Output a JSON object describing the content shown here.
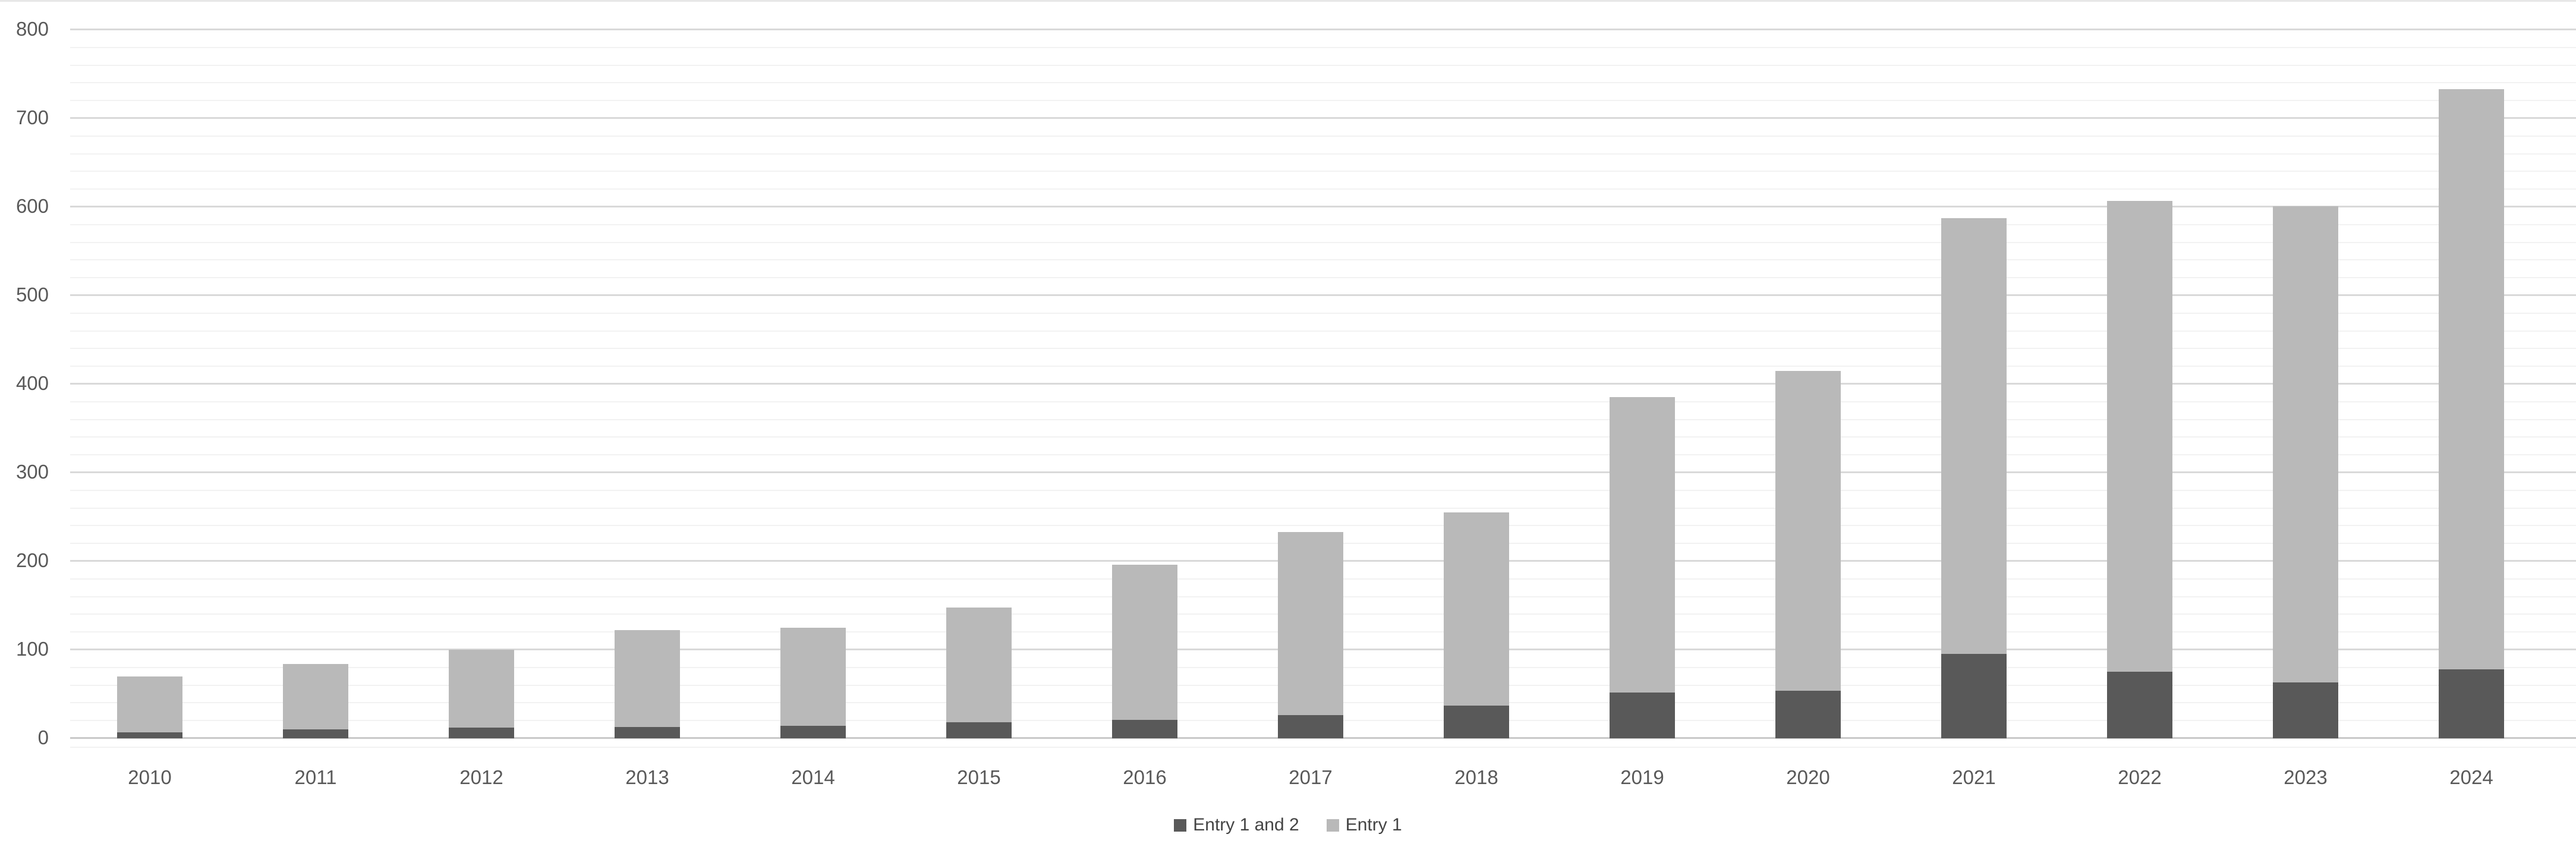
{
  "chart_data": {
    "type": "bar",
    "stacked": true,
    "title": "",
    "categories": [
      "2010",
      "2011",
      "2012",
      "2013",
      "2014",
      "2015",
      "2016",
      "2017",
      "2018",
      "2019",
      "2020",
      "2021",
      "2022",
      "2023",
      "2024"
    ],
    "series": [
      {
        "name": "Entry 1 and 2",
        "color": "#595959",
        "values": [
          7,
          10,
          12,
          13,
          14,
          18,
          21,
          26,
          37,
          52,
          54,
          95,
          75,
          63,
          78
        ]
      },
      {
        "name": "Entry 1",
        "color": "#b9b9b9",
        "values": [
          63,
          74,
          88,
          109,
          111,
          130,
          175,
          207,
          218,
          333,
          361,
          492,
          532,
          538,
          655
        ]
      }
    ],
    "y_axis": {
      "min": 0,
      "max": 800,
      "major_step": 100,
      "minor_step": 20,
      "ticks": [
        "0",
        "100",
        "200",
        "300",
        "400",
        "500",
        "600",
        "700",
        "800"
      ]
    },
    "xlabel": "",
    "ylabel": "",
    "grid": "horizontal major and minor",
    "legend_position": "bottom-center",
    "colors": {
      "major_gridline": "#d9d9d9",
      "minor_gridline": "#f2f2f2",
      "axis_line": "#c9c9c9",
      "tick_label": "#595959"
    }
  }
}
